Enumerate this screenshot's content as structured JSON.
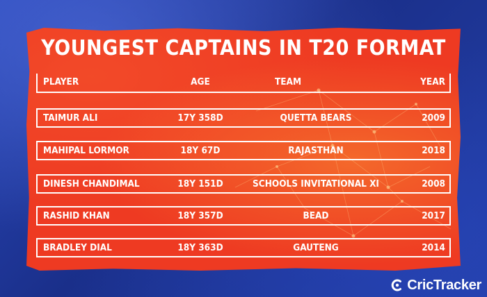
{
  "title": "YOUNGEST CAPTAINS IN T20 FORMAT",
  "header": {
    "player": "PLAYER",
    "age": "AGE",
    "team": "TEAM",
    "year": "YEAR"
  },
  "rows": [
    {
      "player": "TAIMUR ALI",
      "age": "17Y 358D",
      "team": "QUETTA BEARS",
      "year": "2009"
    },
    {
      "player": "MAHIPAL LORMOR",
      "age": "18Y 67D",
      "team": "RAJASTHAN",
      "year": "2018"
    },
    {
      "player": "DINESH CHANDIMAL",
      "age": "18Y 151D",
      "team": "SCHOOLS INVITATIONAL XI",
      "year": "2008"
    },
    {
      "player": "RASHID KHAN",
      "age": "18Y 357D",
      "team": "BEAD",
      "year": "2017"
    },
    {
      "player": "BRADLEY DIAL",
      "age": "18Y 363D",
      "team": "GAUTENG",
      "year": "2014"
    }
  ],
  "brand": {
    "name": "CricTracker",
    "icon": "crictracker-logo-icon"
  },
  "colors": {
    "panel": "#ee3a22",
    "background": "#1f3a9c",
    "text": "#ffffff"
  }
}
